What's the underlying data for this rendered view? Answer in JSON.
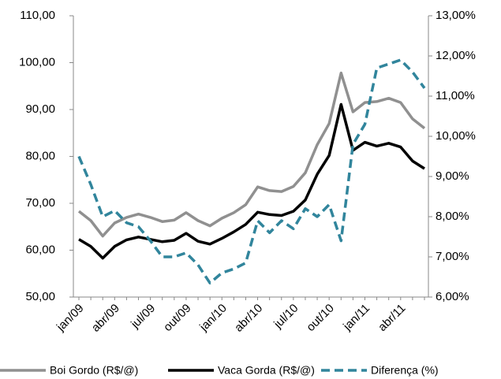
{
  "chart_data": {
    "type": "line",
    "categories": [
      "jan/09",
      null,
      null,
      "abr/09",
      null,
      null,
      "jul/09",
      null,
      null,
      "out/09",
      null,
      null,
      "jan/10",
      null,
      null,
      "abr/10",
      null,
      null,
      "jul/10",
      null,
      null,
      "out/10",
      null,
      null,
      "jan/11",
      null,
      null,
      "abr/11",
      null,
      null
    ],
    "series": [
      {
        "name": "Boi Gordo (R$/@)",
        "color": "#909090",
        "dash": false,
        "values": [
          68.3,
          66.3,
          63,
          65.8,
          67,
          67.7,
          67,
          66.1,
          66.4,
          68,
          66.3,
          65.2,
          66.8,
          68,
          69.7,
          73.5,
          72.7,
          72.5,
          73.6,
          76.5,
          82.5,
          87,
          97.8,
          89.5,
          91.5,
          91.7,
          92.4,
          91.5,
          88,
          86
        ]
      },
      {
        "name": "Vaca Gorda (R$/@)",
        "color": "#000000",
        "dash": false,
        "values": [
          62.3,
          60.8,
          58.3,
          60.8,
          62.2,
          62.8,
          62.3,
          61.8,
          62.1,
          63.6,
          61.9,
          61.3,
          62.5,
          63.9,
          65.5,
          68.1,
          67.6,
          67.4,
          68.3,
          70.7,
          76.2,
          80.2,
          91.1,
          81.3,
          83,
          82.2,
          82.8,
          82,
          79,
          77.4
        ]
      },
      {
        "name": "Diferença (%)",
        "color": "#31859c",
        "dash": true,
        "axis": "y2",
        "values": [
          9.5,
          8.8,
          8.0,
          8.15,
          7.85,
          7.75,
          7.4,
          7.0,
          7.0,
          7.1,
          6.8,
          6.35,
          6.6,
          6.7,
          6.85,
          7.9,
          7.6,
          7.9,
          7.7,
          8.2,
          8.0,
          8.3,
          7.4,
          9.8,
          10.3,
          11.7,
          11.8,
          11.9,
          11.6,
          11.2
        ]
      }
    ],
    "ylim": [
      50,
      110
    ],
    "yticks": [
      {
        "value": 50,
        "label": "50,00"
      },
      {
        "value": 60,
        "label": "60,00"
      },
      {
        "value": 70,
        "label": "70,00"
      },
      {
        "value": 80,
        "label": "80,00"
      },
      {
        "value": 90,
        "label": "90,00"
      },
      {
        "value": 100,
        "label": "100,00"
      },
      {
        "value": 110,
        "label": "110,00"
      }
    ],
    "y2lim": [
      6,
      13
    ],
    "y2ticks": [
      {
        "value": 6,
        "label": "6,00%"
      },
      {
        "value": 7,
        "label": "7,00%"
      },
      {
        "value": 8,
        "label": "8,00%"
      },
      {
        "value": 9,
        "label": "9,00%"
      },
      {
        "value": 10,
        "label": "10,00%"
      },
      {
        "value": 11,
        "label": "11,00%"
      },
      {
        "value": 12,
        "label": "12,00%"
      },
      {
        "value": 13,
        "label": "13,00%"
      }
    ],
    "grid": false
  }
}
